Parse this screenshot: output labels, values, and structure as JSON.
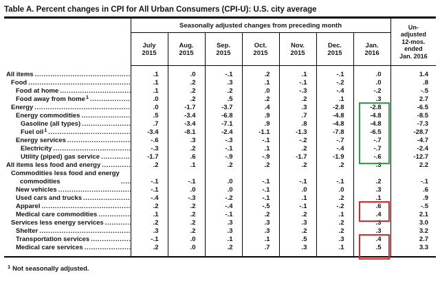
{
  "title": "Table A. Percent changes in CPI for All Urban Consumers (CPI-U): U.S. city average",
  "colors": {
    "highlight_green": "#1fa63c",
    "highlight_red": "#ee1c25",
    "rule_black": "#000000"
  },
  "table": {
    "group_header": "Seasonally adjusted changes from preceding month",
    "month_columns": [
      {
        "month": "July",
        "year": "2015"
      },
      {
        "month": "Aug.",
        "year": "2015"
      },
      {
        "month": "Sep.",
        "year": "2015"
      },
      {
        "month": "Oct.",
        "year": "2015"
      },
      {
        "month": "Nov.",
        "year": "2015"
      },
      {
        "month": "Dec.",
        "year": "2015"
      },
      {
        "month": "Jan.",
        "year": "2016"
      }
    ],
    "unadjusted_header_lines": [
      "Un-",
      "adjusted",
      "12-mos.",
      "ended",
      "Jan. 2016"
    ],
    "rows": [
      {
        "label": "All items",
        "indent": 0,
        "values": [
          ".1",
          ".0",
          "-.1",
          ".2",
          ".1",
          "-.1",
          ".0",
          "1.4"
        ]
      },
      {
        "label": "Food",
        "indent": 1,
        "values": [
          ".1",
          ".2",
          ".3",
          ".1",
          "-.1",
          "-.2",
          ".0",
          ".8"
        ]
      },
      {
        "label": "Food at home",
        "indent": 2,
        "values": [
          ".1",
          ".2",
          ".2",
          ".0",
          "-.3",
          "-.4",
          "-.2",
          "-.5"
        ]
      },
      {
        "label": "Food away from home",
        "sup": "1",
        "indent": 2,
        "values": [
          ".0",
          ".2",
          ".5",
          ".2",
          ".2",
          ".1",
          ".3",
          "2.7"
        ]
      },
      {
        "label": "Energy",
        "indent": 1,
        "values": [
          ".0",
          "-1.7",
          "-3.7",
          ".4",
          ".3",
          "-2.8",
          "-2.8",
          "-6.5"
        ]
      },
      {
        "label": "Energy commodities",
        "indent": 2,
        "values": [
          ".5",
          "-3.4",
          "-6.8",
          ".9",
          ".7",
          "-4.8",
          "-4.8",
          "-8.5"
        ]
      },
      {
        "label": "Gasoline (all types)",
        "indent": 3,
        "values": [
          ".7",
          "-3.4",
          "-7.1",
          ".9",
          ".8",
          "-4.8",
          "-4.8",
          "-7.3"
        ]
      },
      {
        "label": "Fuel oil",
        "sup": "1",
        "indent": 3,
        "values": [
          "-3.4",
          "-8.1",
          "-2.4",
          "-1.1",
          "-1.3",
          "-7.8",
          "-6.5",
          "-28.7"
        ]
      },
      {
        "label": "Energy services",
        "indent": 2,
        "values": [
          "-.6",
          ".3",
          "-.3",
          "-.1",
          "-.2",
          "-.7",
          "-.7",
          "-4.7"
        ]
      },
      {
        "label": "Electricity",
        "indent": 3,
        "values": [
          "-.3",
          ".2",
          "-.1",
          ".1",
          ".2",
          "-.4",
          "-.7",
          "-2.4"
        ]
      },
      {
        "label": "Utility (piped) gas service",
        "indent": 3,
        "values": [
          "-1.7",
          ".6",
          "-.9",
          "-.9",
          "-1.7",
          "-1.9",
          "-.6",
          "-12.7"
        ]
      },
      {
        "label": "All items less food and energy",
        "indent": 0,
        "values": [
          ".2",
          ".1",
          ".2",
          ".2",
          ".2",
          ".2",
          ".3",
          "2.2"
        ]
      },
      {
        "label": "Commodities less food and energy\ncommodities",
        "indent": 1,
        "wrap": true,
        "values": [
          "-.1",
          "-.1",
          ".0",
          "-.1",
          "-.1",
          "-.1",
          ".2",
          "-.1"
        ]
      },
      {
        "label": "New vehicles",
        "indent": 2,
        "values": [
          "-.1",
          ".0",
          ".0",
          "-.1",
          ".0",
          ".0",
          ".3",
          ".6"
        ]
      },
      {
        "label": "Used cars and trucks",
        "indent": 2,
        "values": [
          "-.4",
          "-.3",
          "-.2",
          "-.1",
          ".1",
          ".2",
          ".1",
          ".9"
        ]
      },
      {
        "label": "Apparel",
        "indent": 2,
        "values": [
          ".2",
          ".2",
          "-.4",
          "-.5",
          "-.1",
          "-.2",
          ".6",
          "-.5"
        ]
      },
      {
        "label": "Medical care commodities",
        "indent": 2,
        "values": [
          ".1",
          ".2",
          "-.1",
          ".2",
          ".2",
          ".1",
          ".4",
          "2.1"
        ]
      },
      {
        "label": "Services less energy services",
        "indent": 1,
        "values": [
          ".2",
          ".2",
          ".3",
          ".3",
          ".3",
          ".2",
          ".3",
          "3.0"
        ]
      },
      {
        "label": "Shelter",
        "indent": 2,
        "values": [
          ".3",
          ".2",
          ".3",
          ".3",
          ".2",
          ".2",
          ".3",
          "3.2"
        ]
      },
      {
        "label": "Transportation services",
        "indent": 2,
        "values": [
          "-.1",
          ".0",
          ".1",
          ".1",
          ".5",
          ".3",
          ".4",
          "2.7"
        ]
      },
      {
        "label": "Medical care services",
        "indent": 2,
        "values": [
          ".2",
          ".0",
          ".2",
          ".7",
          ".3",
          ".1",
          ".5",
          "3.3"
        ]
      }
    ],
    "highlights": [
      {
        "color_key": "highlight_green",
        "column": 6,
        "row_start": 4,
        "row_end": 10
      },
      {
        "color_key": "highlight_red",
        "column": 6,
        "row_start": 15,
        "row_end": 16
      },
      {
        "color_key": "highlight_red",
        "column": 6,
        "row_start": 19,
        "row_end": 20
      }
    ]
  },
  "footnote": {
    "sup": "1",
    "text": "Not seasonally adjusted."
  }
}
